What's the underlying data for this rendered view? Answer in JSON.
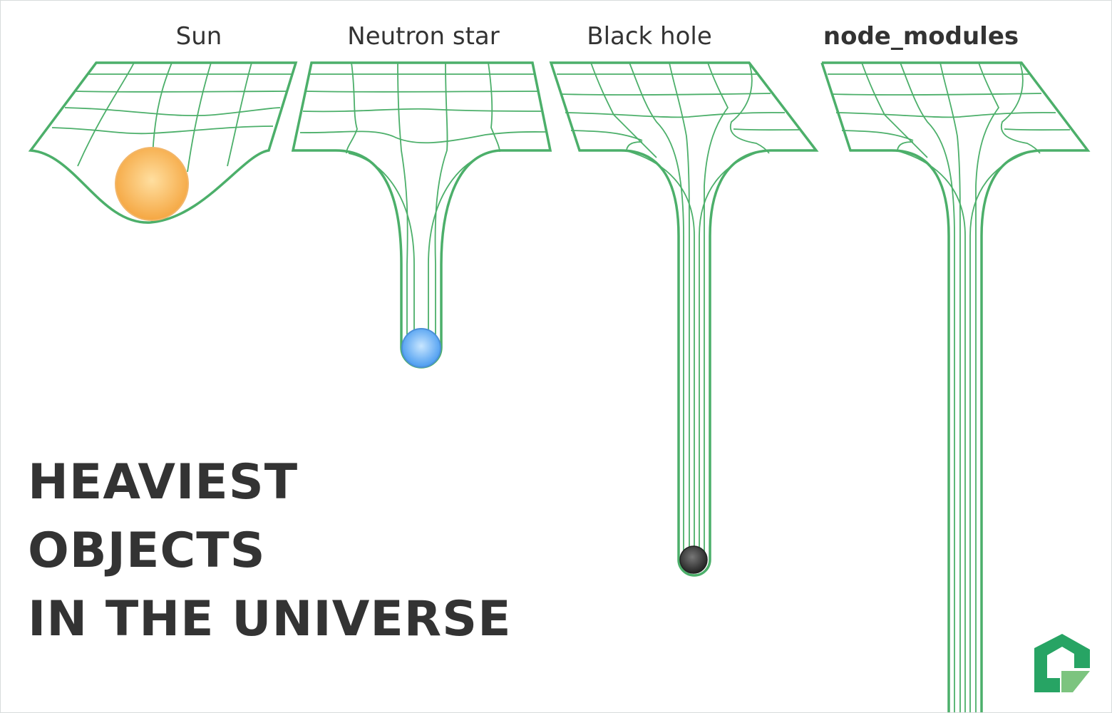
{
  "objects": [
    {
      "label": "Sun",
      "bold": false
    },
    {
      "label": "Neutron star",
      "bold": false
    },
    {
      "label": "Black hole",
      "bold": false
    },
    {
      "label": "node_modules",
      "bold": true
    }
  ],
  "headline": {
    "line1": "HEAVIEST",
    "line2": "OBJECTS",
    "line3": "IN THE UNIVERSE"
  },
  "colors": {
    "grid_green": "#4caf6a",
    "text": "#333333",
    "sun": "#f5a742",
    "neutron_star": "#5aa7f2",
    "black_hole": "#3a3a3a",
    "logo_dark": "#27a464",
    "logo_light": "#7cc47f"
  },
  "logo": {
    "icon": "brand-logo-icon"
  }
}
